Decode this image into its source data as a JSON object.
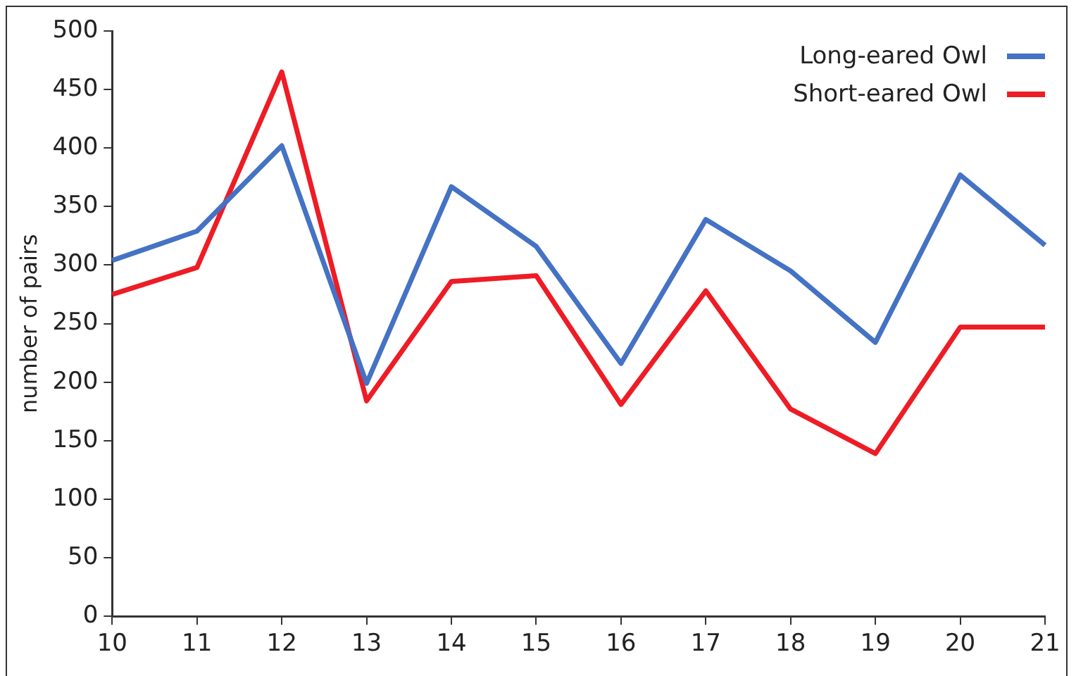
{
  "chart_data": {
    "type": "line",
    "ylabel": "number of pairs",
    "categories": [
      "10",
      "11",
      "12",
      "13",
      "14",
      "15",
      "16",
      "17",
      "18",
      "19",
      "20",
      "21"
    ],
    "series": [
      {
        "name": "Long-eared Owl",
        "color": "#4472c4",
        "values": [
          304,
          329,
          402,
          199,
          367,
          316,
          216,
          339,
          295,
          234,
          377,
          317
        ]
      },
      {
        "name": "Short-eared Owl",
        "color": "#ee1c25",
        "values": [
          275,
          298,
          465,
          184,
          286,
          291,
          181,
          278,
          177,
          139,
          247,
          247
        ]
      }
    ],
    "ylim": [
      0,
      500
    ],
    "yticks": [
      0,
      50,
      100,
      150,
      200,
      250,
      300,
      350,
      400,
      450,
      500
    ],
    "grid": false,
    "legend": "top right",
    "marker": "none",
    "line_style": "solid"
  }
}
